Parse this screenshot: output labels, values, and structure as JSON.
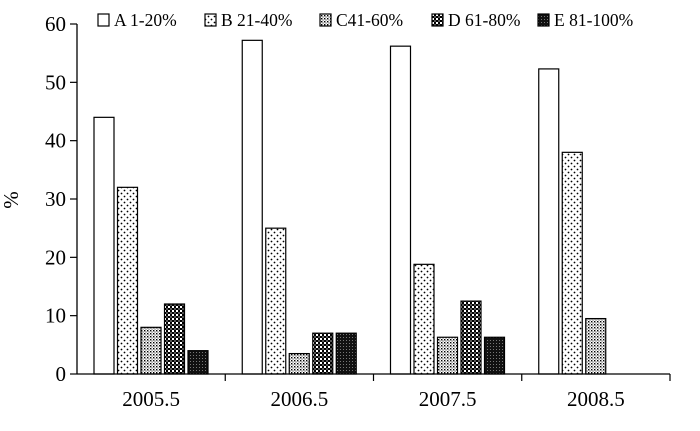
{
  "chart_data": {
    "type": "bar",
    "title": "",
    "xlabel": "",
    "ylabel": "%",
    "ylim": [
      0,
      60
    ],
    "yticks": [
      0,
      10,
      20,
      30,
      40,
      50,
      60
    ],
    "categories": [
      "2005.5",
      "2006.5",
      "2007.5",
      "2008.5"
    ],
    "series": [
      {
        "name": "A 1-20%",
        "pattern": "empty",
        "values": [
          44,
          57.2,
          56.2,
          52.3
        ]
      },
      {
        "name": "B 21-40%",
        "pattern": "sparse-dots",
        "values": [
          32,
          25,
          18.8,
          38
        ]
      },
      {
        "name": "C41-60%",
        "pattern": "dense-dots",
        "values": [
          8,
          3.5,
          6.3,
          9.5
        ]
      },
      {
        "name": "D 61-80%",
        "pattern": "checker",
        "values": [
          12,
          7,
          12.5,
          null
        ]
      },
      {
        "name": "E 81-100%",
        "pattern": "dark",
        "values": [
          4,
          7,
          6.3,
          null
        ]
      }
    ],
    "grid": false,
    "legend_position": "top"
  }
}
